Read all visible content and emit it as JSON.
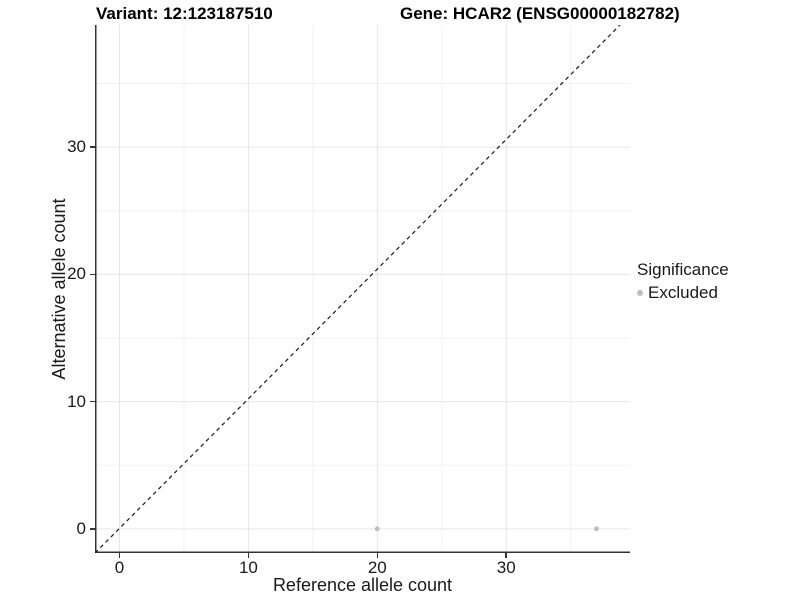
{
  "titles": {
    "variant": "Variant: 12:123187510",
    "gene": "Gene: HCAR2 (ENSG00000182782)"
  },
  "chart_data": {
    "type": "scatter",
    "xlabel": "Reference allele count",
    "ylabel": "Alternative allele count",
    "xlim": [
      -1.9,
      39.6
    ],
    "ylim": [
      -1.9,
      39.6
    ],
    "x_ticks": [
      0,
      10,
      20,
      30
    ],
    "y_ticks": [
      0,
      10,
      20,
      30
    ],
    "x_minor_ticks": [
      5,
      15,
      25,
      35
    ],
    "y_minor_ticks": [
      5,
      15,
      25,
      35
    ],
    "grid": true,
    "series": [
      {
        "name": "Excluded",
        "color": "#bdbdbd",
        "points": [
          {
            "x": 20,
            "y": 0
          },
          {
            "x": 37,
            "y": 0
          }
        ]
      }
    ],
    "reference_line": {
      "type": "identity",
      "style": "dashed",
      "color": "#1a1a1a"
    },
    "legend": {
      "title": "Significance",
      "position": "right",
      "entries": [
        {
          "label": "Excluded",
          "color": "#bdbdbd"
        }
      ]
    },
    "colors": {
      "axis_line": "#333333",
      "major_grid": "#e6e6e6",
      "minor_grid": "#f2f2f2",
      "tick_text": "#1a1a1a"
    }
  }
}
